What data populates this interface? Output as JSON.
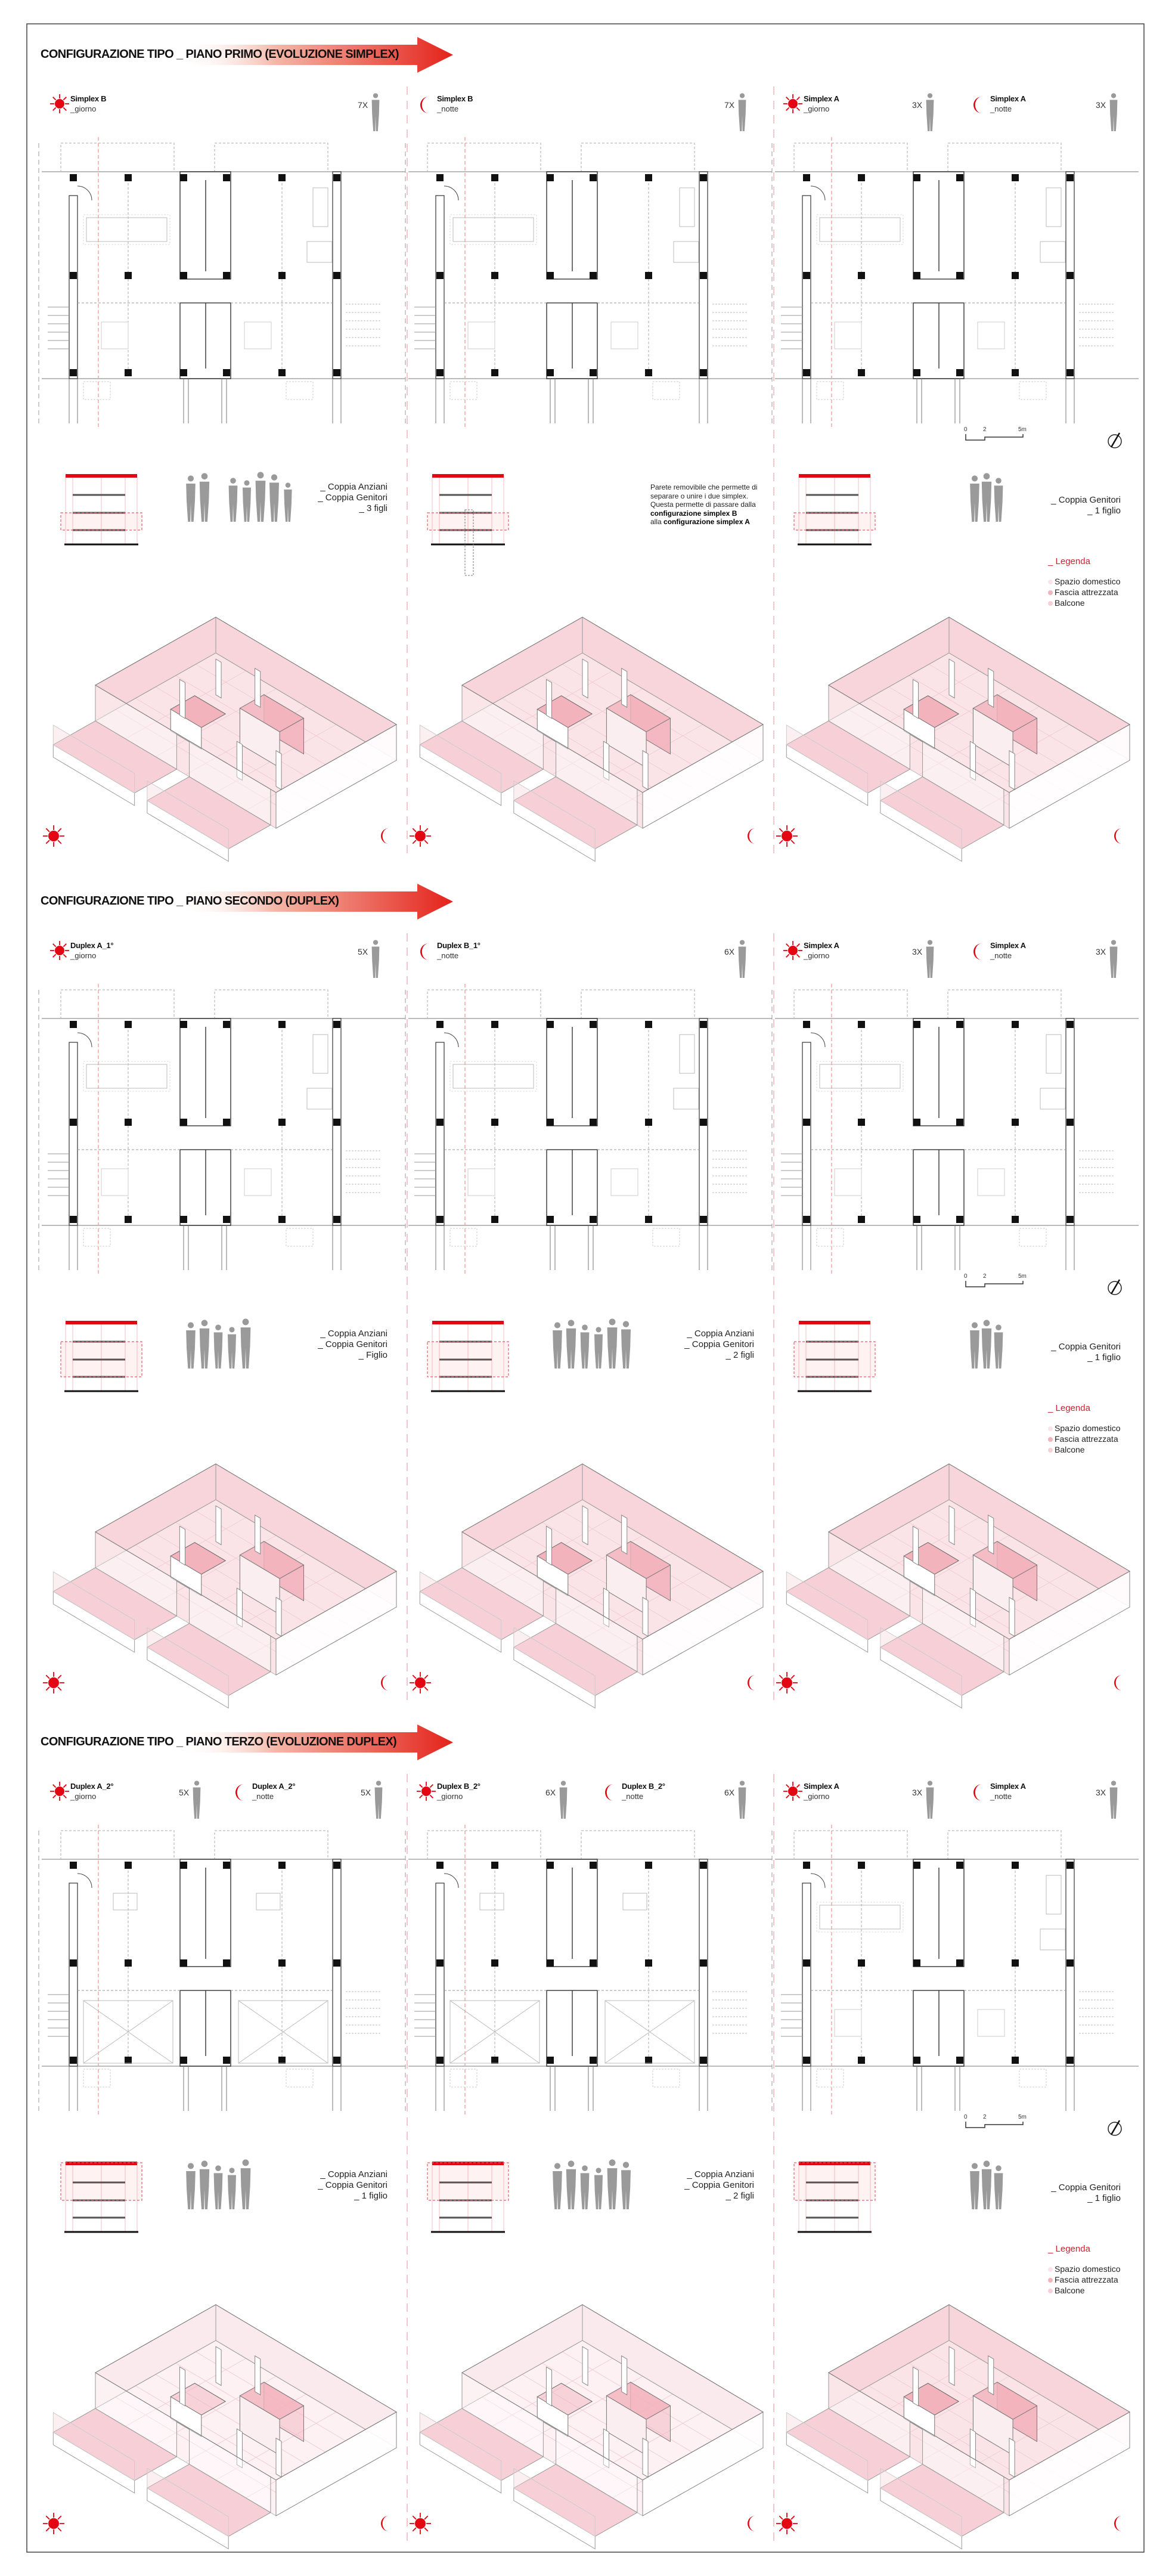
{
  "colors": {
    "accent": "#e30613",
    "floor": "#fbe4e8",
    "wall": "#f3c3cb",
    "core": "#f2b3bd",
    "figure": "#9a9a9a"
  },
  "legend": {
    "title": "_ Legenda",
    "items": [
      {
        "label": "Spazio domestico",
        "color": "#fbe4e8"
      },
      {
        "label": "Fascia attrezzata",
        "color": "#f2b3bd"
      },
      {
        "label": "Balcone",
        "color": "#f6d0d6"
      }
    ]
  },
  "scale_bar": {
    "labels": [
      "0",
      "2",
      "5m"
    ]
  },
  "sections": [
    {
      "title": "CONFIGURAZIONE TIPO _ PIANO PRIMO (EVOLUZIONE SIMPLEX)",
      "highlighted_levels": [
        2
      ],
      "headers": [
        {
          "name": "Simplex B",
          "sub": "_giorno",
          "count": "7X",
          "icon": "sun"
        },
        {
          "name": "Simplex B",
          "sub": "_notte",
          "count": "7X",
          "icon": "moon"
        },
        {
          "name": "Simplex A",
          "sub": "_giorno",
          "count": "3X",
          "icon": "sun"
        },
        {
          "name": "Simplex A",
          "sub": "_notte",
          "count": "3X",
          "icon": "moon"
        }
      ],
      "groups": [
        {
          "figures": 7,
          "people": [
            "_ Coppia Anziani",
            "_ Coppia Genitori",
            "_ 3 figli"
          ]
        },
        {
          "note": [
            [
              {
                "t": "Parete removibile che permette di",
                "b": false
              }
            ],
            [
              {
                "t": "separare o unire i due simplex.",
                "b": false
              }
            ],
            [
              {
                "t": "Questa permette di passare dalla",
                "b": false
              }
            ],
            [
              {
                "t": "configurazione simplex B",
                "b": true
              }
            ],
            [
              {
                "t": "alla ",
                "b": false
              },
              {
                "t": "configurazione simplex A",
                "b": true
              }
            ]
          ]
        },
        {
          "figures": 3,
          "people": [
            "_ Coppia Genitori",
            "_ 1 figlio"
          ]
        }
      ]
    },
    {
      "title": "CONFIGURAZIONE TIPO _ PIANO SECONDO (DUPLEX)",
      "highlighted_levels": [
        1,
        2
      ],
      "headers": [
        {
          "name": "Duplex A_1°",
          "sub": "_giorno",
          "count": "5X",
          "icon": "sun"
        },
        {
          "name": "Duplex B_1°",
          "sub": "_notte",
          "count": "6X",
          "icon": "moon"
        },
        {
          "name": "Simplex A",
          "sub": "_giorno",
          "count": "3X",
          "icon": "sun"
        },
        {
          "name": "Simplex A",
          "sub": "_notte",
          "count": "3X",
          "icon": "moon"
        }
      ],
      "groups": [
        {
          "figures": 5,
          "people": [
            "_ Coppia Anziani",
            "_ Coppia Genitori",
            "_ Figlio"
          ]
        },
        {
          "figures": 6,
          "people": [
            "_ Coppia Anziani",
            "_ Coppia Genitori",
            "_ 2 figli"
          ]
        },
        {
          "figures": 3,
          "people": [
            "_ Coppia Genitori",
            "_ 1 figlio"
          ]
        }
      ]
    },
    {
      "title": "CONFIGURAZIONE TIPO _ PIANO TERZO (EVOLUZIONE DUPLEX)",
      "highlighted_levels": [
        0,
        1
      ],
      "headers": [
        {
          "name": "Duplex A_2°",
          "sub": "_giorno",
          "count": "5X",
          "icon": "sun"
        },
        {
          "name": "Duplex A_2°",
          "sub": "_notte",
          "count": "5X",
          "icon": "moon"
        },
        {
          "name": "Duplex B_2°",
          "sub": "_giorno",
          "count": "6X",
          "icon": "sun"
        },
        {
          "name": "Duplex B_2°",
          "sub": "_notte",
          "count": "6X",
          "icon": "moon"
        },
        {
          "name": "Simplex A",
          "sub": "_giorno",
          "count": "3X",
          "icon": "sun"
        },
        {
          "name": "Simplex A",
          "sub": "_notte",
          "count": "3X",
          "icon": "moon"
        }
      ],
      "groups": [
        {
          "figures": 5,
          "people": [
            "_ Coppia Anziani",
            "_ Coppia Genitori",
            "_ 1 figlio"
          ]
        },
        {
          "figures": 6,
          "people": [
            "_ Coppia Anziani",
            "_ Coppia Genitori",
            "_ 2 figli"
          ]
        },
        {
          "figures": 3,
          "people": [
            "_ Coppia Genitori",
            "_ 1 figlio"
          ]
        }
      ]
    }
  ]
}
